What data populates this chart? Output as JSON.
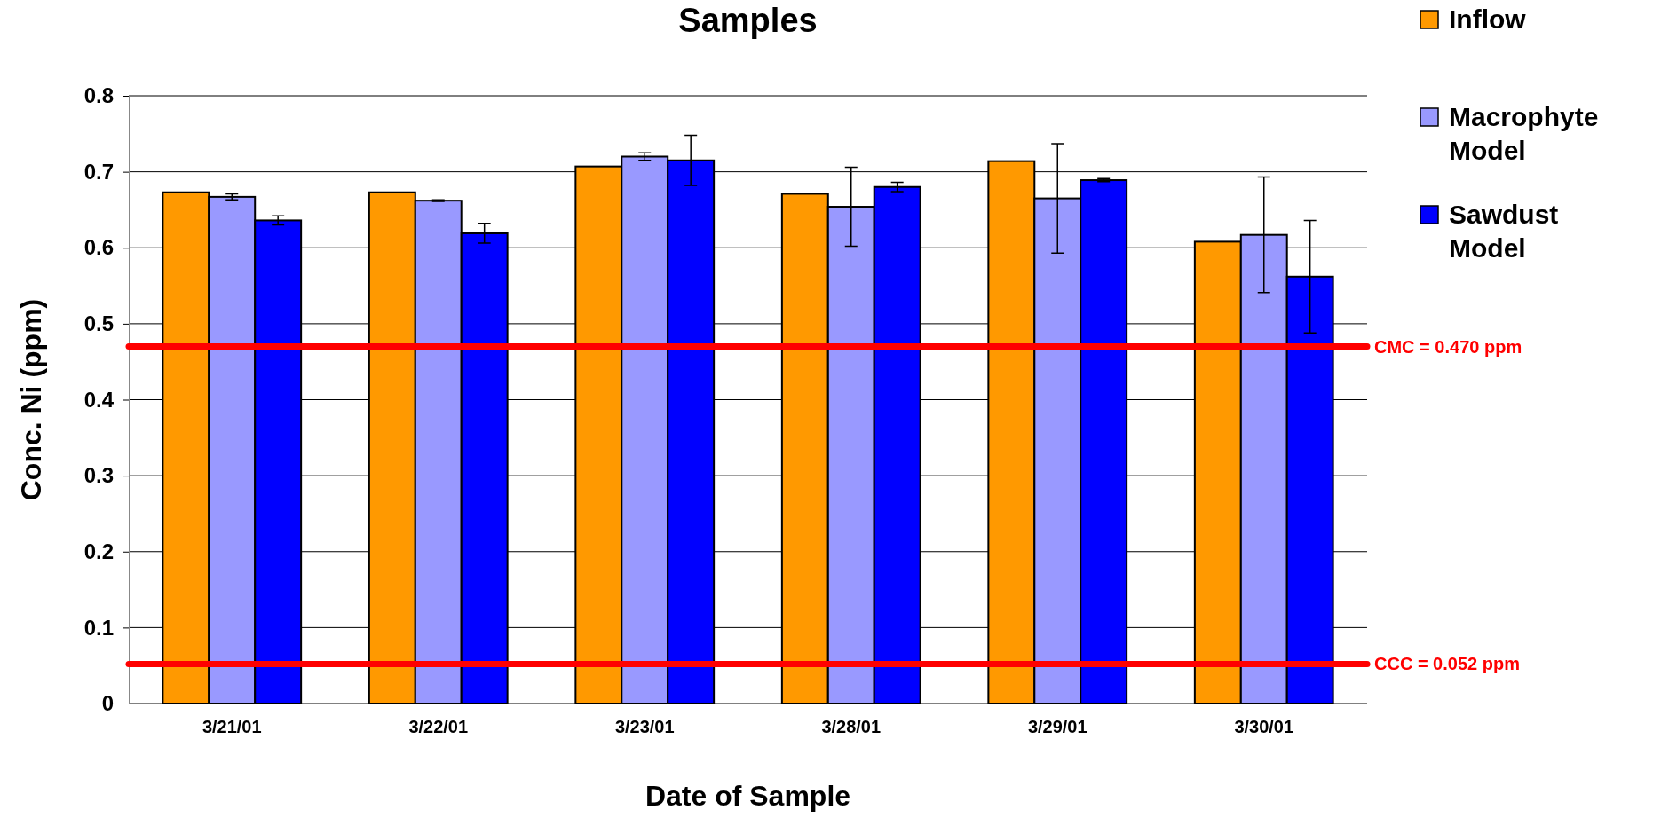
{
  "chart_data": {
    "type": "bar",
    "title": "Samples",
    "xlabel": "Date of Sample",
    "ylabel": "Conc. Ni (ppm)",
    "categories": [
      "3/21/01",
      "3/22/01",
      "3/23/01",
      "3/28/01",
      "3/29/01",
      "3/30/01"
    ],
    "series": [
      {
        "name": "Inflow",
        "color": "#ff9900",
        "values": [
          0.673,
          0.673,
          0.707,
          0.671,
          0.714,
          0.608
        ]
      },
      {
        "name": "Macrophyte Model",
        "color": "#9999ff",
        "values": [
          0.667,
          0.662,
          0.72,
          0.654,
          0.665,
          0.617
        ],
        "errors": [
          0.004,
          0.001,
          0.005,
          0.052,
          0.072,
          0.076
        ]
      },
      {
        "name": "Sawdust Model",
        "color": "#0000ff",
        "values": [
          0.636,
          0.619,
          0.715,
          0.68,
          0.689,
          0.562
        ],
        "errors": [
          0.006,
          0.013,
          0.033,
          0.006,
          0.002,
          0.074
        ]
      }
    ],
    "ylim": [
      0,
      0.8
    ],
    "yticks": [
      0,
      0.1,
      0.2,
      0.3,
      0.4,
      0.5,
      0.6,
      0.7,
      0.8
    ],
    "grid": "y",
    "legend": "top right",
    "ref_lines": [
      {
        "axis": "y",
        "value": 0.47,
        "label": "CMC = 0.470 ppm",
        "color": "#ff0000"
      },
      {
        "axis": "y",
        "value": 0.052,
        "label": "CCC = 0.052 ppm",
        "color": "#ff0000"
      }
    ]
  }
}
